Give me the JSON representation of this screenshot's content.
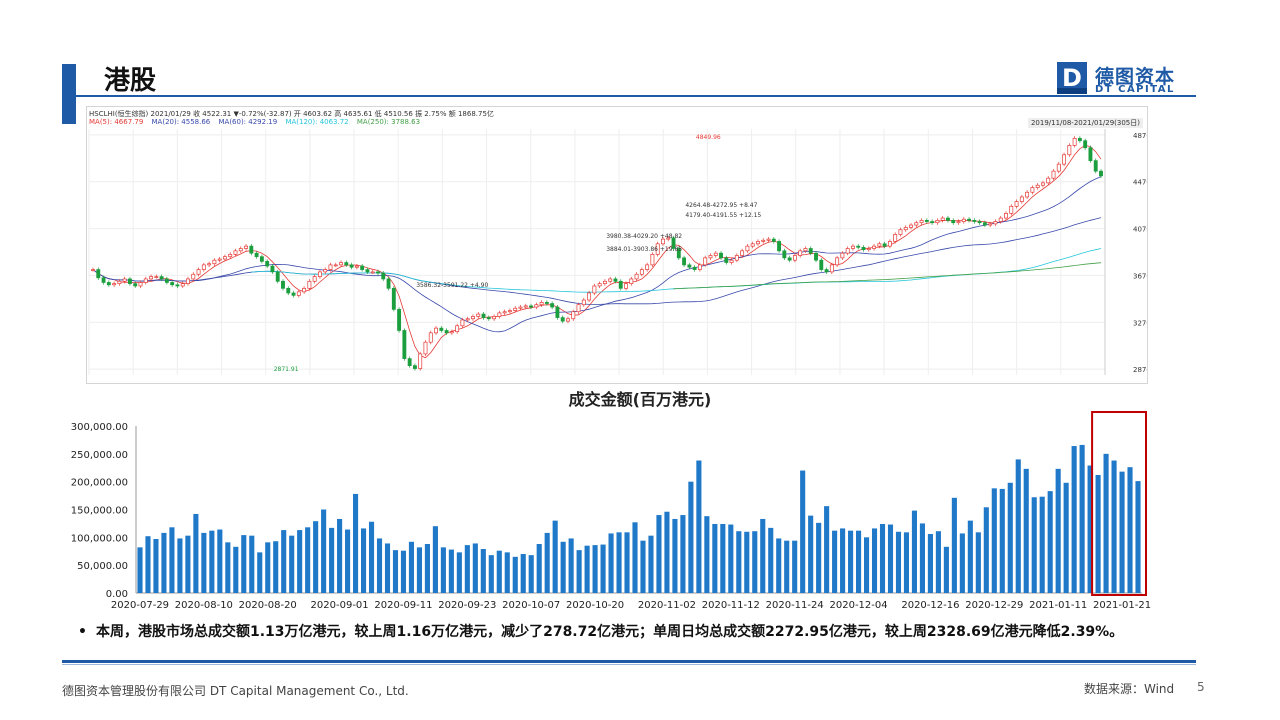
{
  "page": {
    "title": "港股",
    "logo_cn": "德图资本",
    "logo_en": "DT CAPITAL",
    "logo_mark_letter": "D",
    "footer_left": "德图资本管理股份有限公司 DT Capital Management Co., Ltd.",
    "footer_right": "数据来源：Wind",
    "page_number": "5",
    "bullet_text": "本周，港股市场总成交额1.13万亿港元，较上周1.16万亿港元，减少了278.72亿港元；单周日均总成交额2272.95亿港元，较上周2328.69亿港元降低2.39%。"
  },
  "colors": {
    "accent": "#1f5aa6",
    "bar": "#1f78c8",
    "up": "#e53935",
    "down": "#1b9e3e",
    "highlight_box": "#c00000"
  },
  "chart_data": [
    {
      "type": "line",
      "title": "",
      "header_line1": "HSCLHI(恒生综指)    2021/01/29  收 4522.31  ▼-0.72%(-32.87)  开 4603.62  高 4635.61  低 4510.56  振 2.75%  额 1868.75亿",
      "ma_labels": [
        {
          "text": "MA(5): 4667.79",
          "color": "#e53935"
        },
        {
          "text": "MA(20): 4558.66",
          "color": "#3949ab"
        },
        {
          "text": "MA(60): 4292.19",
          "color": "#3949ab"
        },
        {
          "text": "MA(120): 4063.72",
          "color": "#26c6da"
        },
        {
          "text": "MA(250): 3788.63",
          "color": "#43a047"
        }
      ],
      "range_label": "2019/11/08-2021/01/29(305日)",
      "y_ticks": [
        4870,
        4470,
        4070,
        3670,
        3270,
        2870
      ],
      "ylim": [
        2820,
        4920
      ],
      "annotations": [
        {
          "text": "4849.96",
          "value": 4849.96,
          "index": 115,
          "color": "#e53935"
        },
        {
          "text": "2871.91",
          "value": 2871.91,
          "index": 35,
          "color": "#1b9e3e"
        },
        {
          "text": "4264.48-4272.95  +8.47",
          "value": 4270,
          "index": 113,
          "color": "#333"
        },
        {
          "text": "4179.40-4191.55  +12.15",
          "value": 4185,
          "index": 113,
          "color": "#333"
        },
        {
          "text": "3980.38-4029.20  +48.82",
          "value": 4005,
          "index": 98,
          "color": "#333"
        },
        {
          "text": "3884.01-3903.86  +19.85",
          "value": 3895,
          "index": 98,
          "color": "#333"
        },
        {
          "text": "3586.32-3591.22  +4.90",
          "value": 3590,
          "index": 62,
          "color": "#333"
        }
      ],
      "close_series": [
        3720,
        3650,
        3610,
        3590,
        3600,
        3620,
        3640,
        3600,
        3580,
        3610,
        3640,
        3660,
        3660,
        3640,
        3610,
        3590,
        3580,
        3600,
        3640,
        3680,
        3720,
        3760,
        3770,
        3800,
        3810,
        3830,
        3850,
        3880,
        3900,
        3920,
        3860,
        3830,
        3790,
        3750,
        3700,
        3620,
        3560,
        3520,
        3500,
        3530,
        3560,
        3620,
        3660,
        3700,
        3720,
        3760,
        3760,
        3780,
        3760,
        3740,
        3750,
        3720,
        3700,
        3700,
        3690,
        3640,
        3560,
        3380,
        3200,
        2960,
        2900,
        2875,
        3000,
        3100,
        3180,
        3220,
        3200,
        3180,
        3190,
        3240,
        3290,
        3300,
        3320,
        3340,
        3310,
        3300,
        3320,
        3350,
        3360,
        3370,
        3390,
        3400,
        3410,
        3400,
        3420,
        3440,
        3430,
        3400,
        3310,
        3280,
        3300,
        3360,
        3420,
        3460,
        3520,
        3580,
        3600,
        3620,
        3640,
        3620,
        3560,
        3600,
        3640,
        3680,
        3720,
        3760,
        3850,
        3940,
        3980,
        3990,
        3900,
        3820,
        3760,
        3740,
        3720,
        3760,
        3820,
        3840,
        3860,
        3820,
        3780,
        3800,
        3840,
        3880,
        3920,
        3940,
        3960,
        3970,
        3980,
        3960,
        3880,
        3820,
        3800,
        3840,
        3880,
        3900,
        3860,
        3800,
        3720,
        3700,
        3760,
        3820,
        3860,
        3900,
        3920,
        3910,
        3890,
        3900,
        3920,
        3940,
        3920,
        3960,
        4020,
        4060,
        4080,
        4100,
        4120,
        4140,
        4130,
        4120,
        4140,
        4160,
        4140,
        4120,
        4130,
        4150,
        4140,
        4130,
        4120,
        4100,
        4110,
        4130,
        4160,
        4200,
        4260,
        4300,
        4340,
        4380,
        4420,
        4440,
        4460,
        4500,
        4560,
        4620,
        4700,
        4780,
        4840,
        4820,
        4760,
        4650,
        4560,
        4520
      ]
    },
    {
      "type": "bar",
      "title": "成交金额(百万港元)",
      "ylim": [
        0,
        300000
      ],
      "y_tick_labels": [
        "300,000.00",
        "250,000.00",
        "200,000.00",
        "150,000.00",
        "100,000.00",
        "50,000.00",
        "0.00"
      ],
      "x_tick_labels": [
        "2020-07-29",
        "2020-08-10",
        "2020-08-20",
        "2020-09-01",
        "2020-09-11",
        "2020-09-23",
        "2020-10-07",
        "2020-10-20",
        "2020-11-02",
        "2020-11-12",
        "2020-11-24",
        "2020-12-04",
        "2020-12-16",
        "2020-12-29",
        "2021-01-11",
        "2021-01-21"
      ],
      "values": [
        82000,
        102000,
        97000,
        108000,
        118000,
        98000,
        103000,
        142000,
        108000,
        112000,
        114000,
        91000,
        83000,
        104000,
        103000,
        73000,
        91000,
        93000,
        113000,
        103000,
        113000,
        118000,
        129000,
        150000,
        117000,
        133000,
        114000,
        178000,
        116000,
        128000,
        98000,
        89000,
        77000,
        76000,
        92000,
        82000,
        88000,
        120000,
        82000,
        78000,
        73000,
        86000,
        89000,
        79000,
        68000,
        76000,
        73000,
        65000,
        70000,
        68000,
        88000,
        108000,
        130000,
        92000,
        98000,
        77000,
        85000,
        86000,
        87000,
        107000,
        109000,
        109000,
        127000,
        94000,
        103000,
        140000,
        146000,
        133000,
        140000,
        200000,
        238000,
        138000,
        124000,
        124000,
        123000,
        111000,
        110000,
        111000,
        133000,
        117000,
        98000,
        94000,
        94000,
        220000,
        139000,
        126000,
        156000,
        112000,
        116000,
        112000,
        112000,
        100000,
        116000,
        124000,
        123000,
        110000,
        109000,
        148000,
        125000,
        106000,
        111000,
        83000,
        171000,
        107000,
        130000,
        109000,
        154000,
        188000,
        187000,
        198000,
        240000,
        223000,
        172000,
        173000,
        183000,
        223000,
        198000,
        264000,
        266000,
        229000,
        212000,
        250000,
        238000,
        218000,
        226000,
        201000
      ],
      "highlight_last_n": 6
    }
  ]
}
